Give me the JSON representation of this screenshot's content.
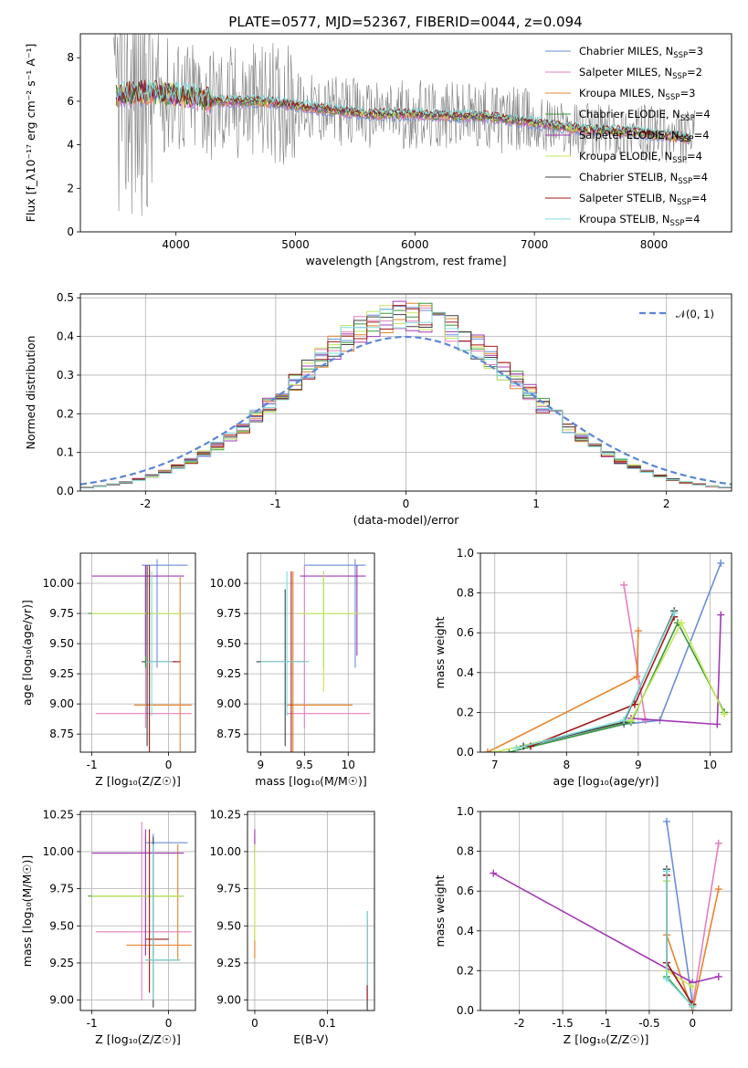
{
  "figure": {
    "title": "PLATE=0577, MJD=52367, FIBERID=0044, z=0.094"
  },
  "colors": {
    "data": "#7f7f7f",
    "series": [
      "#6a8edb",
      "#e57fbf",
      "#e8842e",
      "#3a9a3a",
      "#a338b5",
      "#c5e85a",
      "#404040",
      "#a01a1a",
      "#7fdcdc"
    ],
    "normal_curve": "#5b86d6",
    "grid": "#b0b0b0"
  },
  "legend_series": [
    {
      "name": "Chabrier MILES, N",
      "sub": "SSP",
      "suffix": "=3"
    },
    {
      "name": "Salpeter MILES, N",
      "sub": "SSP",
      "suffix": "=2"
    },
    {
      "name": "Kroupa MILES, N",
      "sub": "SSP",
      "suffix": "=3"
    },
    {
      "name": "Chabrier ELODIE, N",
      "sub": "SSP",
      "suffix": "=4"
    },
    {
      "name": "Salpeter ELODIE, N",
      "sub": "SSP",
      "suffix": "=4"
    },
    {
      "name": "Kroupa ELODIE, N",
      "sub": "SSP",
      "suffix": "=4"
    },
    {
      "name": "Chabrier STELIB, N",
      "sub": "SSP",
      "suffix": "=4"
    },
    {
      "name": "Salpeter STELIB, N",
      "sub": "SSP",
      "suffix": "=4"
    },
    {
      "name": "Kroupa STELIB, N",
      "sub": "SSP",
      "suffix": "=4"
    }
  ],
  "chart_data": [
    {
      "id": "spectrum",
      "type": "line",
      "xlabel": "wavelength [Angstrom, rest frame]",
      "ylabel": "Flux [f_λ10⁻¹⁷ erg cm⁻² s⁻¹ A⁻¹]",
      "xlim": [
        3200,
        8650
      ],
      "ylim": [
        0,
        9.1
      ],
      "xticks": [
        4000,
        5000,
        6000,
        7000,
        8000
      ],
      "yticks": [
        0,
        2,
        4,
        6,
        8
      ],
      "grid": false,
      "legend": "top-right",
      "continuum_points": [
        [
          3500,
          6.3
        ],
        [
          3800,
          6.4
        ],
        [
          4000,
          6.3
        ],
        [
          4300,
          6.0
        ],
        [
          4700,
          6.0
        ],
        [
          5000,
          5.8
        ],
        [
          5300,
          5.6
        ],
        [
          5600,
          5.4
        ],
        [
          6000,
          5.4
        ],
        [
          6300,
          5.3
        ],
        [
          6600,
          5.3
        ],
        [
          7000,
          5.0
        ],
        [
          7400,
          4.7
        ],
        [
          7800,
          4.6
        ],
        [
          8300,
          4.3
        ]
      ]
    },
    {
      "id": "residuals",
      "type": "bar",
      "xlabel": "(data-model)/error",
      "ylabel": "Normed distribution",
      "xlim": [
        -2.5,
        2.5
      ],
      "ylim": [
        0,
        0.51
      ],
      "xticks": [
        -2,
        -1,
        0,
        1,
        2
      ],
      "yticks": [
        0.0,
        0.1,
        0.2,
        0.3,
        0.4,
        0.5
      ],
      "grid": true,
      "legend": "top-right",
      "reference_curve": {
        "name": "𝒩(0, 1)",
        "mean": 0,
        "sigma": 1
      },
      "bin_width": 0.1
    },
    {
      "id": "age_vs_Z",
      "type": "scatter",
      "xlabel": "Z [log₁₀(Z/Z☉)]",
      "ylabel": "age  [log₁₀(age/yr)]",
      "xlim": [
        -1.15,
        0.35
      ],
      "ylim": [
        8.6,
        10.25
      ],
      "xticks": [
        -1,
        0
      ],
      "yticks": [
        8.75,
        9.0,
        9.25,
        9.5,
        9.75,
        10.0
      ],
      "grid": true,
      "crosses": [
        {
          "s": 0,
          "x": -0.15,
          "y": 10.15,
          "x0": -0.35,
          "x1": 0.25,
          "y0": 9.3,
          "y1": 10.2
        },
        {
          "s": 1,
          "x": -0.3,
          "y": 8.92,
          "x0": -0.95,
          "x1": 0.3,
          "y0": 8.8,
          "y1": 10.15
        },
        {
          "s": 2,
          "x": 0.15,
          "y": 8.99,
          "x0": -0.45,
          "x1": 0.3,
          "y0": 8.6,
          "y1": 10.05
        },
        {
          "s": 3,
          "x": -0.3,
          "y": 9.75,
          "x0": -1.05,
          "x1": 0.2,
          "y0": 9.3,
          "y1": 10.1
        },
        {
          "s": 4,
          "x": -0.3,
          "y": 10.06,
          "x0": -1.0,
          "x1": 0.2,
          "y0": 9.4,
          "y1": 10.15
        },
        {
          "s": 5,
          "x": -0.25,
          "y": 9.75,
          "x0": -1.0,
          "x1": 0.2,
          "y0": 9.1,
          "y1": 10.1
        },
        {
          "s": 6,
          "x": -0.28,
          "y": 9.35,
          "x0": -0.35,
          "x1": 0.1,
          "y0": 8.65,
          "y1": 10.15
        },
        {
          "s": 7,
          "x": -0.25,
          "y": 9.35,
          "x0": -0.3,
          "x1": 0.15,
          "y0": 8.6,
          "y1": 10.15
        },
        {
          "s": 8,
          "x": -0.22,
          "y": 9.35,
          "x0": -0.3,
          "x1": 0.05,
          "y0": 8.9,
          "y1": 10.1
        }
      ]
    },
    {
      "id": "age_vs_mass",
      "type": "scatter",
      "xlabel": "mass [log₁₀(M/M☉)]",
      "ylabel": "",
      "xlim": [
        8.85,
        10.3
      ],
      "ylim": [
        8.6,
        10.25
      ],
      "xticks": [
        9.0,
        9.5,
        10.0
      ],
      "yticks": [
        8.75,
        9.0,
        9.25,
        9.5,
        9.75,
        10.0
      ],
      "grid": true,
      "crosses": [
        {
          "s": 0,
          "x": 10.08,
          "y": 10.15,
          "x0": 9.5,
          "x1": 10.2,
          "y0": 9.3,
          "y1": 10.2
        },
        {
          "s": 1,
          "x": 9.5,
          "y": 8.92,
          "x0": 9.3,
          "x1": 10.25,
          "y0": 8.8,
          "y1": 10.15
        },
        {
          "s": 2,
          "x": 9.37,
          "y": 8.99,
          "x0": 9.3,
          "x1": 10.05,
          "y0": 8.6,
          "y1": 10.1
        },
        {
          "s": 3,
          "x": 9.72,
          "y": 9.75,
          "x0": 9.45,
          "x1": 10.12,
          "y0": 9.3,
          "y1": 10.1
        },
        {
          "s": 4,
          "x": 10.1,
          "y": 10.06,
          "x0": 9.45,
          "x1": 10.2,
          "y0": 9.4,
          "y1": 10.15
        },
        {
          "s": 5,
          "x": 9.72,
          "y": 9.75,
          "x0": 9.45,
          "x1": 10.12,
          "y0": 9.1,
          "y1": 10.1
        },
        {
          "s": 6,
          "x": 9.28,
          "y": 9.35,
          "x0": 8.95,
          "x1": 9.5,
          "y0": 8.65,
          "y1": 9.95
        },
        {
          "s": 7,
          "x": 9.35,
          "y": 9.35,
          "x0": 9.0,
          "x1": 9.55,
          "y0": 8.6,
          "y1": 10.1
        },
        {
          "s": 8,
          "x": 9.3,
          "y": 9.35,
          "x0": 9.0,
          "x1": 9.55,
          "y0": 8.9,
          "y1": 10.1
        }
      ]
    },
    {
      "id": "weight_vs_age",
      "type": "line",
      "xlabel": "age  [log₁₀(age/yr)]",
      "ylabel": "mass weight",
      "xlim": [
        6.8,
        10.3
      ],
      "ylim": [
        0,
        1.0
      ],
      "xticks": [
        7,
        8,
        9,
        10
      ],
      "yticks": [
        0.0,
        0.2,
        0.4,
        0.6,
        0.8,
        1.0
      ],
      "grid": true,
      "series": [
        {
          "s": 0,
          "points": [
            [
              7.5,
              0.03
            ],
            [
              8.8,
              0.14
            ],
            [
              9.3,
              0.16
            ],
            [
              10.15,
              0.95
            ]
          ]
        },
        {
          "s": 1,
          "points": [
            [
              8.8,
              0.84
            ],
            [
              9.1,
              0.16
            ]
          ]
        },
        {
          "s": 2,
          "points": [
            [
              6.9,
              0.0
            ],
            [
              8.98,
              0.38
            ],
            [
              9.0,
              0.61
            ]
          ]
        },
        {
          "s": 3,
          "points": [
            [
              7.2,
              0.0
            ],
            [
              8.9,
              0.15
            ],
            [
              9.55,
              0.65
            ],
            [
              10.2,
              0.2
            ]
          ]
        },
        {
          "s": 4,
          "points": [
            [
              8.9,
              0.17
            ],
            [
              10.1,
              0.14
            ],
            [
              10.15,
              0.69
            ]
          ]
        },
        {
          "s": 5,
          "points": [
            [
              7.0,
              0.0
            ],
            [
              8.9,
              0.16
            ],
            [
              9.6,
              0.65
            ],
            [
              10.2,
              0.19
            ]
          ]
        },
        {
          "s": 6,
          "points": [
            [
              7.4,
              0.03
            ],
            [
              8.8,
              0.15
            ],
            [
              9.5,
              0.71
            ]
          ]
        },
        {
          "s": 7,
          "points": [
            [
              7.5,
              0.03
            ],
            [
              8.95,
              0.24
            ],
            [
              9.5,
              0.68
            ]
          ]
        },
        {
          "s": 8,
          "points": [
            [
              7.3,
              0.02
            ],
            [
              8.8,
              0.16
            ],
            [
              9.5,
              0.7
            ]
          ]
        }
      ]
    },
    {
      "id": "mass_vs_Z",
      "type": "scatter",
      "xlabel": "Z [log₁₀(Z/Z☉)]",
      "ylabel": "mass [log₁₀(M/M☉)]",
      "xlim": [
        -1.15,
        0.35
      ],
      "ylim": [
        8.93,
        10.27
      ],
      "xticks": [
        -1,
        0
      ],
      "yticks": [
        9.0,
        9.25,
        9.5,
        9.75,
        10.0,
        10.25
      ],
      "grid": true,
      "crosses": [
        {
          "s": 0,
          "x": -0.2,
          "y": 10.06,
          "x0": -0.3,
          "x1": 0.25,
          "y0": 9.3,
          "y1": 10.12
        },
        {
          "s": 1,
          "x": -0.35,
          "y": 9.46,
          "x0": -0.95,
          "x1": 0.3,
          "y0": 9.0,
          "y1": 10.2
        },
        {
          "s": 2,
          "x": 0.12,
          "y": 9.37,
          "x0": -0.55,
          "x1": 0.3,
          "y0": 9.27,
          "y1": 10.05
        },
        {
          "s": 3,
          "x": -0.3,
          "y": 9.7,
          "x0": -1.05,
          "x1": 0.2,
          "y0": 9.3,
          "y1": 10.1
        },
        {
          "s": 4,
          "x": -0.3,
          "y": 9.99,
          "x0": -1.0,
          "x1": 0.2,
          "y0": 9.3,
          "y1": 10.15
        },
        {
          "s": 5,
          "x": -0.25,
          "y": 9.7,
          "x0": -1.0,
          "x1": 0.2,
          "y0": 9.1,
          "y1": 10.1
        },
        {
          "s": 6,
          "x": -0.2,
          "y": 9.27,
          "x0": -0.3,
          "x1": 0.15,
          "y0": 8.95,
          "y1": 10.1
        },
        {
          "s": 7,
          "x": -0.25,
          "y": 9.41,
          "x0": -0.3,
          "x1": 0.0,
          "y0": 9.05,
          "y1": 10.15
        },
        {
          "s": 8,
          "x": -0.2,
          "y": 9.27,
          "x0": -0.3,
          "x1": 0.15,
          "y0": 9.0,
          "y1": 10.05
        }
      ]
    },
    {
      "id": "mass_vs_EBV",
      "type": "scatter",
      "xlabel": "E(B-V)",
      "ylabel": "",
      "xlim": [
        -0.01,
        0.165
      ],
      "ylim": [
        8.93,
        10.27
      ],
      "xticks": [
        0.0,
        0.1
      ],
      "yticks": [
        9.0,
        9.25,
        9.5,
        9.75,
        10.0,
        10.25
      ],
      "grid": true,
      "crosses": [
        {
          "s": 0,
          "x": 0.0,
          "y": 10.06,
          "x0": 0.0,
          "x1": 0.0,
          "y0": 9.9,
          "y1": 10.12
        },
        {
          "s": 1,
          "x": 0.0,
          "y": 9.46,
          "x0": 0.0,
          "x1": 0.0,
          "y0": 9.3,
          "y1": 10.1
        },
        {
          "s": 2,
          "x": 0.0,
          "y": 9.37,
          "x0": 0.0,
          "x1": 0.0,
          "y0": 9.28,
          "y1": 9.5
        },
        {
          "s": 3,
          "x": 0.155,
          "y": 9.3,
          "x0": 0.155,
          "x1": 0.155,
          "y0": 8.95,
          "y1": 9.6
        },
        {
          "s": 4,
          "x": 0.0,
          "y": 10.06,
          "x0": 0.0,
          "x1": 0.0,
          "y0": 10.0,
          "y1": 10.15
        },
        {
          "s": 5,
          "x": 0.0,
          "y": 9.7,
          "x0": 0.0,
          "x1": 0.0,
          "y0": 9.4,
          "y1": 10.05
        },
        {
          "s": 6,
          "x": 0.155,
          "y": 9.3,
          "x0": 0.155,
          "x1": 0.155,
          "y0": 8.93,
          "y1": 9.6
        },
        {
          "s": 7,
          "x": 0.155,
          "y": 9.3,
          "x0": 0.155,
          "x1": 0.155,
          "y0": 9.0,
          "y1": 9.55
        },
        {
          "s": 8,
          "x": 0.155,
          "y": 9.3,
          "x0": 0.155,
          "x1": 0.155,
          "y0": 9.1,
          "y1": 9.6
        }
      ]
    },
    {
      "id": "weight_vs_Z",
      "type": "line",
      "xlabel": "Z [log₁₀(Z/Z☉)]",
      "ylabel": "mass weight",
      "xlim": [
        -2.45,
        0.45
      ],
      "ylim": [
        0,
        1.0
      ],
      "xticks": [
        -2.0,
        -1.5,
        -1.0,
        -0.5,
        0.0
      ],
      "yticks": [
        0.0,
        0.2,
        0.4,
        0.6,
        0.8,
        1.0
      ],
      "grid": true,
      "series": [
        {
          "s": 0,
          "points": [
            [
              -0.3,
              0.95
            ],
            [
              0.0,
              0.03
            ]
          ]
        },
        {
          "s": 1,
          "points": [
            [
              0.3,
              0.84
            ],
            [
              0.0,
              0.02
            ]
          ]
        },
        {
          "s": 2,
          "points": [
            [
              -0.3,
              0.38
            ],
            [
              0.0,
              0.0
            ],
            [
              0.3,
              0.61
            ]
          ]
        },
        {
          "s": 3,
          "points": [
            [
              -0.3,
              0.65
            ],
            [
              -0.3,
              0.17
            ],
            [
              0.0,
              0.02
            ]
          ]
        },
        {
          "s": 4,
          "points": [
            [
              -2.3,
              0.69
            ],
            [
              0.0,
              0.14
            ],
            [
              0.3,
              0.17
            ]
          ]
        },
        {
          "s": 5,
          "points": [
            [
              -0.3,
              0.65
            ],
            [
              -0.3,
              0.2
            ],
            [
              0.0,
              0.12
            ]
          ]
        },
        {
          "s": 6,
          "points": [
            [
              -0.3,
              0.71
            ],
            [
              -0.3,
              0.24
            ],
            [
              0.0,
              0.03
            ]
          ]
        },
        {
          "s": 7,
          "points": [
            [
              -0.3,
              0.68
            ],
            [
              -0.3,
              0.24
            ],
            [
              0.0,
              0.03
            ]
          ]
        },
        {
          "s": 8,
          "points": [
            [
              -0.3,
              0.7
            ],
            [
              -0.3,
              0.16
            ],
            [
              0.0,
              0.02
            ]
          ]
        }
      ]
    }
  ]
}
